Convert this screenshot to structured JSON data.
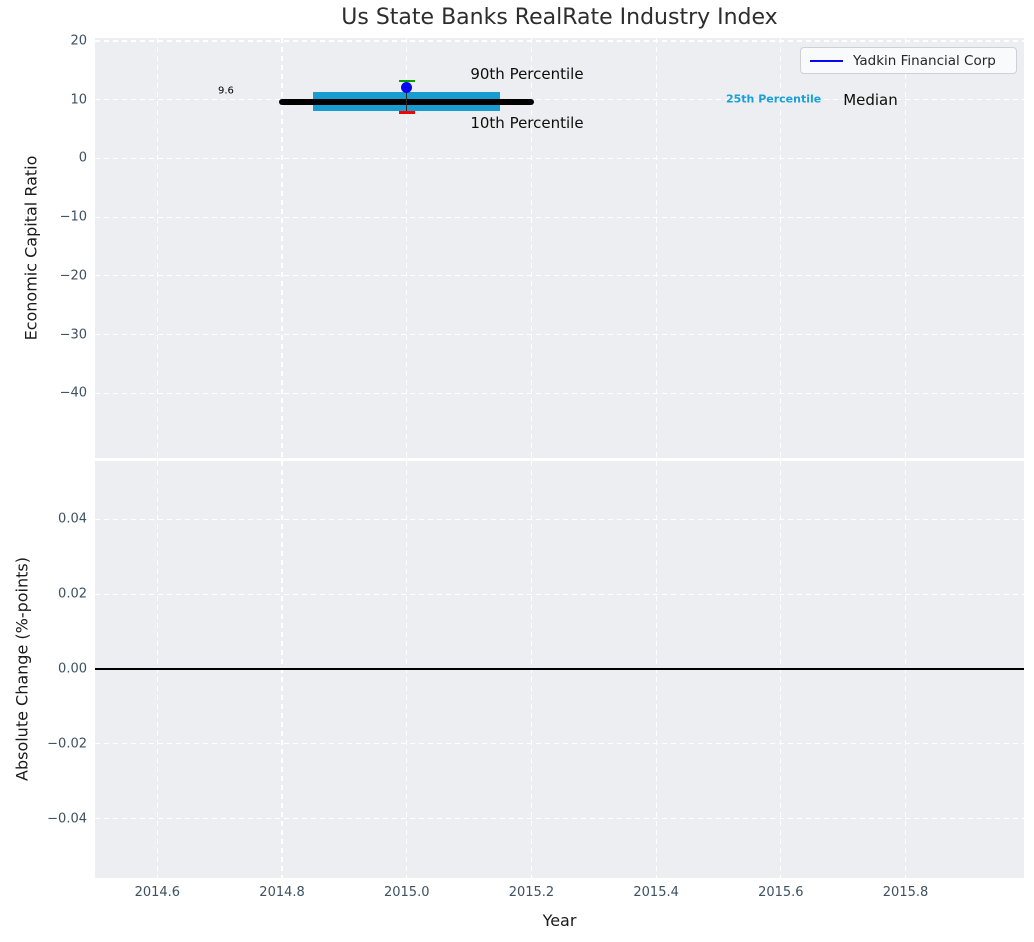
{
  "figure": {
    "title": "Us State Banks RealRate Industry Index",
    "top_ylabel": "Economic Capital Ratio",
    "bottom_ylabel": "Absolute Change (%-points)",
    "xlabel": "Year",
    "legend": {
      "label": "Yadkin Financial Corp",
      "line_color": "#0808f0",
      "loc": "upper right"
    }
  },
  "colors": {
    "axes_background": "#eceef1",
    "grid": "#ffffff",
    "median_line": "#000000",
    "whisker_line": "#2b2b2b",
    "percentile_band": "#189dd1",
    "p90_cap": "#089e00",
    "p10_cap": "#f40101",
    "series": "#0808f0",
    "tick_label": "#3d5161",
    "annotation_text": "#0d0d0d"
  },
  "chart_data": [
    {
      "type": "line-with-percentile-band",
      "title": "Us State Banks RealRate Industry Index",
      "ylabel": "Economic Capital Ratio",
      "xlabel": "",
      "grid": true,
      "legend_position": "upper right",
      "xlim": [
        2014.5,
        2015.99
      ],
      "ylim": [
        -51,
        20.5
      ],
      "xticks": [
        2014.6,
        2014.8,
        2015.0,
        2015.2,
        2015.4,
        2015.6,
        2015.8
      ],
      "xtick_labels": [
        "2014.6",
        "2014.8",
        "2015.0",
        "2015.2",
        "2015.4",
        "2015.6",
        "2015.8"
      ],
      "yticks": [
        20,
        10,
        0,
        -10,
        -20,
        -30,
        -40
      ],
      "ytick_labels": [
        "20",
        "10",
        "0",
        "−10",
        "−20",
        "−30",
        "−40"
      ],
      "series": [
        {
          "name": "Yadkin Financial Corp",
          "x": [
            2015.0
          ],
          "y": [
            12.1
          ],
          "marker": "circle"
        }
      ],
      "industry_percentiles": {
        "x": 2015.0,
        "median": {
          "value": 9.6,
          "x_start": 2014.8,
          "x_end": 2015.2,
          "label": "9.6"
        },
        "band_25_75": {
          "low": 8.1,
          "high": 11.3,
          "x_start": 2014.85,
          "x_end": 2015.15
        },
        "p90": 13.2,
        "p10": 7.8
      },
      "annotations": [
        {
          "text": "9.6",
          "x": 2014.71,
          "y": 11.4,
          "align": "center",
          "size": 10,
          "weight": "normal",
          "color": "#000000"
        },
        {
          "text": "90th Percentile",
          "x": 2015.102,
          "y": 14.4,
          "align": "left",
          "size": 15,
          "weight": "normal",
          "color": "#0d0d0d"
        },
        {
          "text": "10th Percentile",
          "x": 2015.102,
          "y": 6.1,
          "align": "left",
          "size": 15,
          "weight": "normal",
          "color": "#0d0d0d"
        },
        {
          "text": "25th Percentile",
          "x": 2015.512,
          "y": 10.15,
          "align": "left",
          "size": 11,
          "weight": "bold",
          "color": "#1a9fd9"
        },
        {
          "text": "Median",
          "x": 2015.7,
          "y": 9.9,
          "align": "left",
          "size": 15,
          "weight": "normal",
          "color": "#0d0d0d"
        }
      ]
    },
    {
      "type": "line",
      "ylabel": "Absolute Change (%-points)",
      "xlabel": "Year",
      "grid": true,
      "xlim": [
        2014.5,
        2015.99
      ],
      "ylim": [
        -0.0559,
        0.0556
      ],
      "xticks": [
        2014.6,
        2014.8,
        2015.0,
        2015.2,
        2015.4,
        2015.6,
        2015.8
      ],
      "xtick_labels": [
        "2014.6",
        "2014.8",
        "2015.0",
        "2015.2",
        "2015.4",
        "2015.6",
        "2015.8"
      ],
      "yticks": [
        0.04,
        0.02,
        0.0,
        -0.02,
        -0.04
      ],
      "ytick_labels": [
        "0.04",
        "0.02",
        "0.00",
        "−0.02",
        "−0.04"
      ],
      "zero_line": 0.0,
      "series": []
    }
  ]
}
